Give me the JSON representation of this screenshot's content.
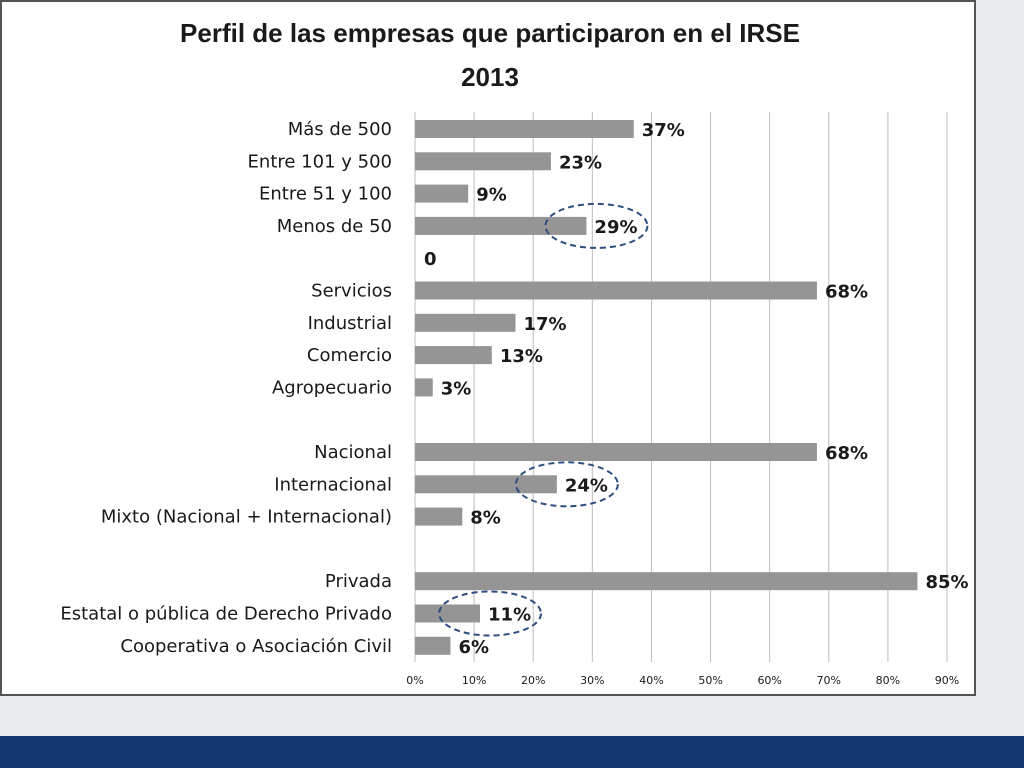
{
  "chart_data": {
    "type": "bar",
    "orientation": "horizontal",
    "title": "Perfil de las empresas que participaron en el IRSE 2013",
    "title_lines": [
      "Perfil de las empresas que participaron en el IRSE",
      "2013"
    ],
    "xlim": [
      0,
      0.9
    ],
    "x_ticks": [
      0,
      0.1,
      0.2,
      0.3,
      0.4,
      0.5,
      0.6,
      0.7,
      0.8,
      0.9
    ],
    "x_tick_labels": [
      "0%",
      "10%",
      "20%",
      "30%",
      "40%",
      "50%",
      "60%",
      "70%",
      "80%",
      "90%"
    ],
    "grid": true,
    "legend": "none",
    "bar_color": "#959595",
    "highlight_color": "#2f4f7f",
    "categories": [
      "Más de 500",
      "Entre 101 y 500",
      "Entre 51 y 100",
      "Menos de 50",
      "",
      "Servicios",
      "Industrial",
      "Comercio",
      "Agropecuario",
      "",
      "Nacional",
      "Internacional",
      "Mixto (Nacional + Internacional)",
      "",
      "Privada",
      "Estatal o pública de Derecho Privado",
      "Cooperativa o Asociación Civil"
    ],
    "values": [
      0.37,
      0.23,
      0.09,
      0.29,
      0,
      0.68,
      0.17,
      0.13,
      0.03,
      null,
      0.68,
      0.24,
      0.08,
      null,
      0.85,
      0.11,
      0.06
    ],
    "data_labels": [
      "37%",
      "23%",
      "9%",
      "29%",
      "0",
      "68%",
      "17%",
      "13%",
      "3%",
      "",
      "68%",
      "24%",
      "8%",
      "",
      "85%",
      "11%",
      "6%"
    ],
    "highlighted": [
      "Menos de 50",
      "Internacional",
      "Estatal o pública de Derecho Privado"
    ]
  },
  "page": {
    "background_color": "#e9ebee",
    "band_color": "#14386e"
  }
}
